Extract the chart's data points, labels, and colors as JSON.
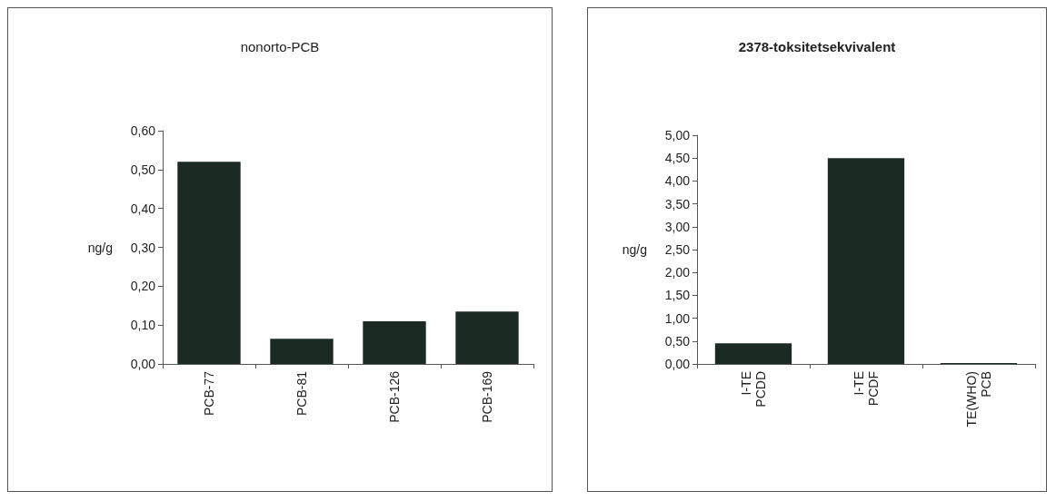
{
  "chart_data": [
    {
      "type": "bar",
      "title": "nonorto-PCB",
      "ylabel": "ng/g",
      "categories": [
        "PCB-77",
        "PCB-81",
        "PCB-126",
        "PCB-169"
      ],
      "values": [
        0.52,
        0.065,
        0.11,
        0.135
      ],
      "color": "#1c2a24",
      "ylim": [
        0,
        0.6
      ],
      "yticks": [
        {
          "value": 0,
          "label": "0,00"
        },
        {
          "value": 0.1,
          "label": "0,10"
        },
        {
          "value": 0.2,
          "label": "0,20"
        },
        {
          "value": 0.3,
          "label": "0,30"
        },
        {
          "value": 0.4,
          "label": "0,40"
        },
        {
          "value": 0.5,
          "label": "0,50"
        },
        {
          "value": 0.6,
          "label": "0,60"
        }
      ],
      "grid": false
    },
    {
      "type": "bar",
      "title": "2378-toksitetsekvivalent",
      "ylabel": "ng/g",
      "categories": [
        "I-TE\nPCDD",
        "I-TE\nPCDF",
        "TE(WHO)\nPCB"
      ],
      "values": [
        0.45,
        4.5,
        0.02
      ],
      "color": "#1c2a24",
      "ylim": [
        0,
        5
      ],
      "yticks": [
        {
          "value": 0,
          "label": "0,00"
        },
        {
          "value": 0.5,
          "label": "0,50"
        },
        {
          "value": 1,
          "label": "1,00"
        },
        {
          "value": 1.5,
          "label": "1,50"
        },
        {
          "value": 2,
          "label": "2,00"
        },
        {
          "value": 2.5,
          "label": "2,50"
        },
        {
          "value": 3,
          "label": "3,00"
        },
        {
          "value": 3.5,
          "label": "3,50"
        },
        {
          "value": 4,
          "label": "4,00"
        },
        {
          "value": 4.5,
          "label": "4,50"
        },
        {
          "value": 5,
          "label": "5,00"
        }
      ],
      "grid": false
    }
  ]
}
